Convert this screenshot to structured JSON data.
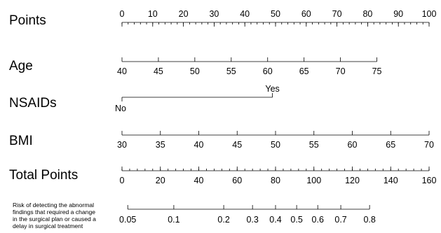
{
  "chart_data": {
    "type": "nomogram",
    "rows": [
      {
        "key": "points",
        "label": "Points",
        "range": [
          0,
          100
        ],
        "labels": [
          "0",
          "10",
          "20",
          "30",
          "40",
          "50",
          "60",
          "70",
          "80",
          "90",
          "100"
        ],
        "ticks": [
          0,
          10,
          20,
          30,
          40,
          50,
          60,
          70,
          80,
          90,
          100
        ],
        "minor_step": 2,
        "points_range": [
          0,
          100
        ]
      },
      {
        "key": "age",
        "label": "Age",
        "range": [
          40,
          75
        ],
        "labels": [
          "40",
          "45",
          "50",
          "55",
          "60",
          "65",
          "70",
          "75"
        ],
        "ticks": [
          40,
          45,
          50,
          55,
          60,
          65,
          70,
          75
        ],
        "points_range": [
          0,
          83
        ]
      },
      {
        "key": "nsaids",
        "label": "NSAIDs",
        "categories": [
          "No",
          "Yes"
        ],
        "points": [
          0,
          49
        ]
      },
      {
        "key": "bmi",
        "label": "BMI",
        "range": [
          30,
          70
        ],
        "labels": [
          "30",
          "35",
          "40",
          "45",
          "50",
          "55",
          "60",
          "65",
          "70"
        ],
        "ticks": [
          30,
          35,
          40,
          45,
          50,
          55,
          60,
          65,
          70
        ],
        "points_range": [
          0,
          100
        ]
      },
      {
        "key": "total_points",
        "label": "Total Points",
        "range": [
          0,
          160
        ],
        "labels": [
          "0",
          "20",
          "40",
          "60",
          "80",
          "100",
          "120",
          "140",
          "160"
        ],
        "ticks": [
          0,
          20,
          40,
          60,
          80,
          100,
          120,
          140,
          160
        ],
        "minor_step": 4
      },
      {
        "key": "risk",
        "label_lines": [
          "Risk of detecting the abnormal",
          "findings that required a change",
          "in the surgical plan or caused a",
          "delay in surgical treatment"
        ],
        "labels": [
          "0.05",
          "0.1",
          "0.2",
          "0.3",
          "0.4",
          "0.5",
          "0.6",
          "0.7",
          "0.8"
        ],
        "ticks": [
          0.05,
          0.1,
          0.2,
          0.3,
          0.4,
          0.5,
          0.6,
          0.7,
          0.8
        ],
        "total_points_at_ticks": [
          3,
          27,
          53,
          68,
          80,
          91,
          102,
          114,
          129
        ]
      }
    ]
  }
}
